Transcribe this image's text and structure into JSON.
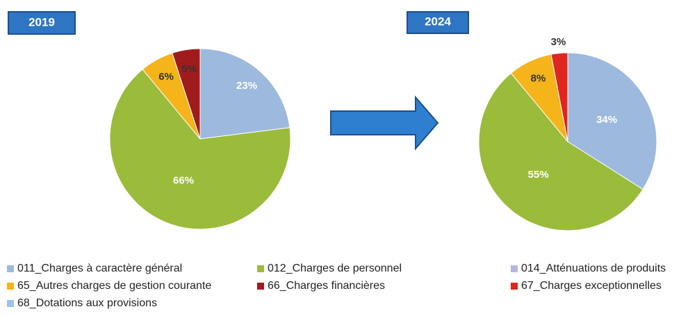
{
  "chart_data": [
    {
      "type": "pie",
      "title": "2019",
      "values": [
        23,
        66,
        null,
        6,
        5,
        null,
        null
      ],
      "value_labels": [
        "23%",
        "66%",
        null,
        "6%",
        "5%",
        null,
        null
      ]
    },
    {
      "type": "pie",
      "title": "2024",
      "values": [
        34,
        55,
        null,
        8,
        null,
        3,
        null
      ],
      "value_labels": [
        "34%",
        "55%",
        null,
        "8%",
        null,
        "3%",
        null
      ]
    }
  ],
  "legend": {
    "categories": [
      "011_Charges à caractère général",
      "012_Charges de personnel",
      "014_Atténuations de produits",
      "65_Autres charges de gestion courante",
      "66_Charges financières",
      "67_Charges exceptionnelles",
      "68_Dotations aux provisions"
    ],
    "colors": [
      "#9db9de",
      "#9bbb3b",
      "#b4b6e0",
      "#f4b41a",
      "#a01c1c",
      "#e0261e",
      "#9dc3e6"
    ]
  }
}
